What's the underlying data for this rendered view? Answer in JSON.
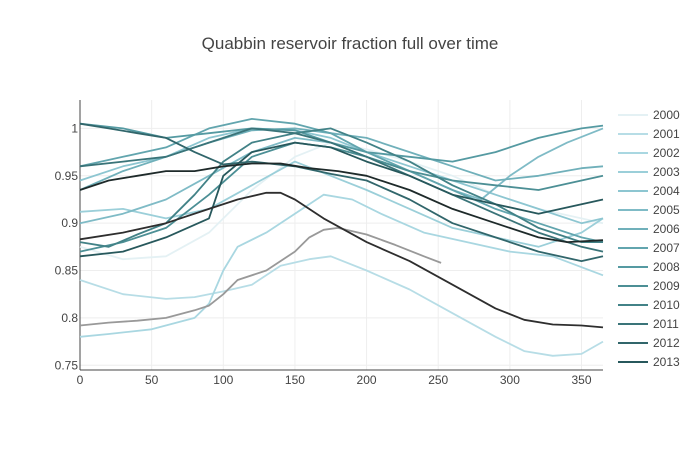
{
  "chart_data": {
    "type": "line",
    "title": "Quabbin reservoir fraction full over time",
    "xlabel": "",
    "ylabel": "",
    "xlim": [
      0,
      365
    ],
    "ylim": [
      0.745,
      1.03
    ],
    "x_ticks": [
      0,
      50,
      100,
      150,
      200,
      250,
      300,
      350
    ],
    "y_ticks": [
      0.75,
      0.8,
      0.85,
      0.9,
      0.95,
      1
    ],
    "y_tick_labels": [
      "0.75",
      "0.8",
      "0.85",
      "0.9",
      "0.95",
      "1"
    ],
    "grid": true,
    "legend_position": "right",
    "series": [
      {
        "name": "2000",
        "color": "#e4f1f4",
        "x": [
          0,
          30,
          60,
          90,
          120,
          150,
          175,
          200,
          230,
          260,
          290,
          320,
          350,
          365
        ],
        "y": [
          0.875,
          0.862,
          0.865,
          0.89,
          0.935,
          0.97,
          0.985,
          0.978,
          0.965,
          0.95,
          0.93,
          0.915,
          0.905,
          0.9
        ]
      },
      {
        "name": "2001",
        "color": "#b7dde6",
        "x": [
          0,
          30,
          60,
          80,
          100,
          120,
          140,
          160,
          175,
          200,
          230,
          260,
          290,
          310,
          330,
          350,
          365
        ],
        "y": [
          0.84,
          0.825,
          0.82,
          0.822,
          0.828,
          0.835,
          0.855,
          0.862,
          0.865,
          0.85,
          0.83,
          0.805,
          0.78,
          0.765,
          0.76,
          0.762,
          0.775
        ]
      },
      {
        "name": "2002",
        "color": "#a9d7e1",
        "x": [
          0,
          20,
          50,
          80,
          90,
          100,
          110,
          130,
          150,
          170,
          190,
          210,
          240,
          270,
          300,
          330,
          365
        ],
        "y": [
          0.78,
          0.783,
          0.788,
          0.8,
          0.815,
          0.85,
          0.875,
          0.89,
          0.91,
          0.93,
          0.925,
          0.91,
          0.89,
          0.88,
          0.87,
          0.865,
          0.845
        ]
      },
      {
        "name": "2003",
        "color": "#9bcfd9",
        "x": [
          0,
          30,
          60,
          90,
          120,
          150,
          175,
          200,
          230,
          260,
          290,
          320,
          350,
          365
        ],
        "y": [
          0.912,
          0.915,
          0.905,
          0.915,
          0.94,
          0.965,
          0.95,
          0.935,
          0.915,
          0.895,
          0.885,
          0.875,
          0.89,
          0.905
        ]
      },
      {
        "name": "2004",
        "color": "#8dc6d1",
        "x": [
          0,
          30,
          60,
          90,
          120,
          150,
          175,
          200,
          230,
          260,
          290,
          320,
          350,
          365
        ],
        "y": [
          0.945,
          0.96,
          0.97,
          0.99,
          1.0,
          0.998,
          0.99,
          0.975,
          0.96,
          0.945,
          0.93,
          0.915,
          0.9,
          0.905
        ]
      },
      {
        "name": "2005",
        "color": "#7fbbc6",
        "x": [
          0,
          30,
          60,
          90,
          120,
          150,
          175,
          200,
          230,
          260,
          280,
          300,
          320,
          340,
          365
        ],
        "y": [
          0.9,
          0.91,
          0.925,
          0.95,
          0.975,
          0.99,
          0.985,
          0.97,
          0.955,
          0.935,
          0.925,
          0.95,
          0.97,
          0.985,
          1.0
        ]
      },
      {
        "name": "2006",
        "color": "#70b0ba",
        "x": [
          0,
          30,
          60,
          90,
          120,
          150,
          175,
          200,
          230,
          260,
          290,
          320,
          350,
          365
        ],
        "y": [
          0.935,
          0.955,
          0.97,
          0.985,
          0.998,
          1.0,
          0.995,
          0.99,
          0.975,
          0.96,
          0.945,
          0.95,
          0.958,
          0.96
        ]
      },
      {
        "name": "2007",
        "color": "#62a5ae",
        "x": [
          0,
          30,
          60,
          90,
          120,
          150,
          175,
          200,
          230,
          260,
          290,
          320,
          350,
          365
        ],
        "y": [
          0.96,
          0.97,
          0.98,
          1.0,
          1.01,
          1.005,
          0.995,
          0.975,
          0.955,
          0.935,
          0.915,
          0.9,
          0.885,
          0.88
        ]
      },
      {
        "name": "2008",
        "color": "#559aa2",
        "x": [
          0,
          30,
          60,
          90,
          120,
          150,
          175,
          200,
          230,
          260,
          290,
          320,
          350,
          365
        ],
        "y": [
          1.005,
          1.0,
          0.99,
          0.995,
          1.0,
          0.998,
          0.985,
          0.975,
          0.97,
          0.965,
          0.975,
          0.99,
          1.0,
          1.003
        ]
      },
      {
        "name": "2009",
        "color": "#4c8f95",
        "x": [
          0,
          30,
          60,
          90,
          120,
          150,
          175,
          200,
          230,
          260,
          290,
          320,
          350,
          365
        ],
        "y": [
          0.87,
          0.88,
          0.895,
          0.93,
          0.97,
          0.985,
          0.98,
          0.97,
          0.955,
          0.945,
          0.94,
          0.935,
          0.945,
          0.95
        ]
      },
      {
        "name": "2010",
        "color": "#428287",
        "x": [
          0,
          20,
          40,
          60,
          80,
          100,
          120,
          150,
          175,
          200,
          230,
          260,
          290,
          320,
          350,
          365
        ],
        "y": [
          0.88,
          0.875,
          0.888,
          0.9,
          0.93,
          0.965,
          0.985,
          0.995,
          1.0,
          0.985,
          0.965,
          0.94,
          0.92,
          0.895,
          0.88,
          0.88
        ]
      },
      {
        "name": "2011",
        "color": "#3a7479",
        "x": [
          0,
          30,
          60,
          90,
          120,
          150,
          175,
          200,
          230,
          260,
          290,
          320,
          350,
          365
        ],
        "y": [
          0.96,
          0.965,
          0.97,
          0.985,
          1.0,
          0.995,
          0.985,
          0.97,
          0.95,
          0.93,
          0.91,
          0.89,
          0.875,
          0.87
        ]
      },
      {
        "name": "2012",
        "color": "#31666b",
        "x": [
          0,
          20,
          40,
          60,
          80,
          100,
          120,
          150,
          175,
          200,
          230,
          260,
          290,
          320,
          350,
          365
        ],
        "y": [
          1.005,
          1.0,
          0.995,
          0.99,
          0.975,
          0.962,
          0.965,
          0.96,
          0.952,
          0.945,
          0.925,
          0.9,
          0.885,
          0.87,
          0.86,
          0.865
        ]
      },
      {
        "name": "2013",
        "color": "#27585c",
        "x": [
          0,
          30,
          60,
          90,
          100,
          120,
          150,
          175,
          200,
          230,
          260,
          290,
          320,
          350,
          365
        ],
        "y": [
          0.865,
          0.87,
          0.885,
          0.905,
          0.95,
          0.975,
          0.985,
          0.98,
          0.965,
          0.95,
          0.93,
          0.92,
          0.91,
          0.92,
          0.925
        ]
      },
      {
        "name": "",
        "color": "#999999",
        "x": [
          0,
          20,
          40,
          60,
          80,
          90,
          100,
          110,
          130,
          150,
          160,
          170,
          180,
          200,
          220,
          240,
          252
        ],
        "y": [
          0.792,
          0.795,
          0.797,
          0.8,
          0.808,
          0.813,
          0.825,
          0.84,
          0.85,
          0.87,
          0.885,
          0.893,
          0.895,
          0.888,
          0.877,
          0.865,
          0.858
        ]
      },
      {
        "name": "",
        "color": "#2e2e2e",
        "x": [
          0,
          30,
          60,
          90,
          110,
          130,
          140,
          150,
          170,
          200,
          230,
          260,
          290,
          310,
          330,
          350,
          365
        ],
        "y": [
          0.883,
          0.89,
          0.9,
          0.915,
          0.925,
          0.932,
          0.932,
          0.925,
          0.905,
          0.88,
          0.86,
          0.835,
          0.81,
          0.798,
          0.793,
          0.792,
          0.79
        ]
      },
      {
        "name": "",
        "color": "#1e2a2a",
        "x": [
          0,
          20,
          40,
          60,
          80,
          100,
          120,
          140,
          160,
          180,
          200,
          230,
          260,
          290,
          320,
          340,
          365
        ],
        "y": [
          0.935,
          0.945,
          0.95,
          0.955,
          0.955,
          0.96,
          0.963,
          0.963,
          0.958,
          0.955,
          0.95,
          0.935,
          0.915,
          0.9,
          0.885,
          0.88,
          0.882
        ]
      }
    ]
  }
}
